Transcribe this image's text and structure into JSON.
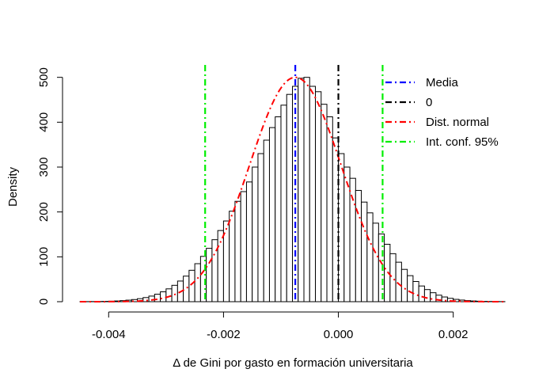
{
  "chart_data": {
    "type": "histogram",
    "xlabel": "Δ de Gini por gasto en formación universitaria",
    "ylabel": "Density",
    "xlim": [
      -0.0045,
      0.0029
    ],
    "ylim": [
      0,
      510
    ],
    "x_ticks": [
      -0.004,
      -0.002,
      0.0,
      0.002
    ],
    "x_tick_labels": [
      "-0.004",
      "-0.002",
      "0.000",
      "0.002"
    ],
    "y_ticks": [
      0,
      100,
      200,
      300,
      400,
      500
    ],
    "y_tick_labels": [
      "0",
      "100",
      "200",
      "300",
      "400",
      "500"
    ],
    "bin_width": 0.0001,
    "bins_start": [
      -0.0045,
      -0.0044,
      -0.0043,
      -0.0042,
      -0.0041,
      -0.004,
      -0.0039,
      -0.0038,
      -0.0037,
      -0.0036,
      -0.0035,
      -0.0034,
      -0.0033,
      -0.0032,
      -0.0031,
      -0.003,
      -0.0029,
      -0.0028,
      -0.0027,
      -0.0026,
      -0.0025,
      -0.0024,
      -0.0023,
      -0.0022,
      -0.0021,
      -0.002,
      -0.0019,
      -0.0018,
      -0.0017,
      -0.0016,
      -0.0015,
      -0.0014,
      -0.0013,
      -0.0012,
      -0.0011,
      -0.001,
      -0.0009,
      -0.0008,
      -0.0007,
      -0.0006,
      -0.0005,
      -0.0004,
      -0.0003,
      -0.0002,
      -0.0001,
      0.0,
      0.0001,
      0.0002,
      0.0003,
      0.0004,
      0.0005,
      0.0006,
      0.0007,
      0.0008,
      0.0009,
      0.001,
      0.0011,
      0.0012,
      0.0013,
      0.0014,
      0.0015,
      0.0016,
      0.0017,
      0.0018,
      0.0019,
      0.002,
      0.0021,
      0.0022,
      0.0023,
      0.0024,
      0.0025,
      0.0026,
      0.0027,
      0.0028
    ],
    "densities": [
      0.1,
      0.2,
      0.3,
      0.5,
      0.7,
      1.1,
      1.6,
      2.4,
      3.4,
      4.8,
      6.7,
      9.2,
      12.5,
      16.7,
      22,
      28.6,
      36.5,
      46,
      57,
      70,
      84.7,
      101,
      118.9,
      138.2,
      158.6,
      179.9,
      201.7,
      223.7,
      245.3,
      266.8,
      300,
      330,
      360,
      388,
      412,
      438,
      462,
      480,
      498,
      500,
      480,
      468,
      440,
      412,
      365,
      330,
      300,
      275,
      248,
      222,
      198,
      175,
      151,
      128,
      107,
      88,
      72,
      58,
      45,
      35,
      27,
      20,
      14.5,
      10.5,
      7.5,
      5.2,
      3.6,
      2.4,
      1.6,
      1.1,
      0.7,
      0.5,
      0.3,
      0.2
    ],
    "normal_curve": {
      "mean": -0.00075,
      "sd": 0.0008,
      "peak_density": 500,
      "color": "#ff0000"
    },
    "reference_lines": [
      {
        "name": "Media",
        "x": -0.00075,
        "color": "#0000ff"
      },
      {
        "name": "0",
        "x": 0.0,
        "color": "#000000"
      },
      {
        "name": "Int. conf. 95%",
        "x": -0.00232,
        "color": "#00ee00"
      },
      {
        "name": "Int. conf. 95%",
        "x": 0.00077,
        "color": "#00ee00"
      }
    ],
    "legend": [
      {
        "label": "Media",
        "color": "#0000ff"
      },
      {
        "label": "0",
        "color": "#000000"
      },
      {
        "label": "Dist. normal",
        "color": "#ff0000"
      },
      {
        "label": "Int. conf. 95%",
        "color": "#00ee00"
      }
    ],
    "legend_position": "top-right",
    "grid": false
  }
}
